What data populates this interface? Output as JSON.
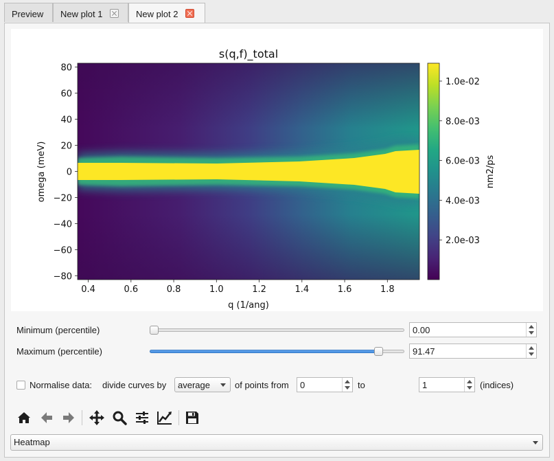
{
  "tabs": [
    {
      "label": "Preview",
      "closable": false
    },
    {
      "label": "New plot 1",
      "closable": true
    },
    {
      "label": "New plot 2",
      "closable": true,
      "active": true
    }
  ],
  "chart_data": {
    "type": "heatmap",
    "title": "s(q,f)_total",
    "xlabel": "q (1/ang)",
    "ylabel": "omega (meV)",
    "x_ticks": [
      "0.4",
      "0.6",
      "0.8",
      "1.0",
      "1.2",
      "1.4",
      "1.6",
      "1.8"
    ],
    "x_tick_values": [
      0.4,
      0.6,
      0.8,
      1.0,
      1.2,
      1.4,
      1.6,
      1.8
    ],
    "xlim": [
      0.35,
      1.95
    ],
    "y_ticks": [
      "80",
      "60",
      "40",
      "20",
      "0",
      "−20",
      "−40",
      "−60",
      "−80"
    ],
    "y_tick_values": [
      80,
      60,
      40,
      20,
      0,
      -20,
      -40,
      -60,
      -80
    ],
    "ylim": [
      -83,
      83
    ],
    "colorbar": {
      "label": "nm2/ps",
      "ticks": [
        "1.0e-02",
        "8.0e-03",
        "6.0e-03",
        "4.0e-03",
        "2.0e-03"
      ],
      "tick_values": [
        0.01,
        0.008,
        0.006,
        0.004,
        0.002
      ],
      "range": [
        0.0,
        0.0109
      ],
      "colormap": "viridis"
    }
  },
  "controls": {
    "min_label": "Minimum (percentile)",
    "min_value": "0.00",
    "min_fraction": 0.0,
    "max_label": "Maximum (percentile)",
    "max_value": "91.47",
    "max_fraction": 0.9147,
    "normalise_label": "Normalise data:",
    "divide_label": "divide curves by",
    "divide_option": "average",
    "of_points_label": "of points from",
    "from_value": "0",
    "to_label": "to",
    "to_value": "1",
    "indices_label": "(indices)"
  },
  "toolbar": {
    "icons": [
      "home-icon",
      "back-arrow-icon",
      "forward-arrow-icon",
      "pan-icon",
      "zoom-icon",
      "configure-subplots-icon",
      "edit-axis-icon",
      "save-icon"
    ]
  },
  "plot_type": "Heatmap",
  "colors": {
    "accent": "#3f8ae0",
    "tab_close_active": "#f07055"
  }
}
